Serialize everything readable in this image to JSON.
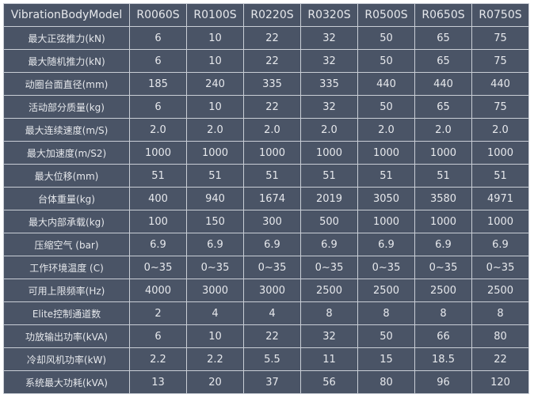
{
  "table": {
    "header": [
      "VibrationBodyModel",
      "R0060S",
      "R0100S",
      "R0220S",
      "R0320S",
      "R0500S",
      "R0650S",
      "R0750S"
    ],
    "rows": [
      [
        "最大正弦推力(kN)",
        "6",
        "10",
        "22",
        "32",
        "50",
        "65",
        "75"
      ],
      [
        "最大随机推力(kN)",
        "6",
        "10",
        "22",
        "32",
        "50",
        "65",
        "75"
      ],
      [
        "动圈台面直径(mm)",
        "185",
        "240",
        "335",
        "335",
        "440",
        "440",
        "440"
      ],
      [
        "活动部分质量(kg)",
        "6",
        "10",
        "22",
        "32",
        "50",
        "65",
        "75"
      ],
      [
        "最大连续速度(m/S)",
        "2.0",
        "2.0",
        "2.0",
        "2.0",
        "2.0",
        "2.0",
        "2.0"
      ],
      [
        "最大加速度(m/S2)",
        "1000",
        "1000",
        "1000",
        "1000",
        "1000",
        "1000",
        "1000"
      ],
      [
        "最大位移(mm)",
        "51",
        "51",
        "51",
        "51",
        "51",
        "51",
        "51"
      ],
      [
        "台体重量(kg)",
        "400",
        "940",
        "1674",
        "2019",
        "3050",
        "3580",
        "4971"
      ],
      [
        "最大内部承载(kg)",
        "100",
        "150",
        "300",
        "500",
        "1000",
        "1000",
        "1000"
      ],
      [
        "压缩空气 (bar)",
        "6.9",
        "6.9",
        "6.9",
        "6.9",
        "6.9",
        "6.9",
        "6.9"
      ],
      [
        "工作环境温度 (C)",
        "0~35",
        "0~35",
        "0~35",
        "0~35",
        "0~35",
        "0~35",
        "0~35"
      ],
      [
        "可用上限频率(Hz)",
        "4000",
        "3000",
        "3000",
        "2500",
        "2500",
        "2500",
        "2500"
      ],
      [
        "Elite控制通道数",
        "2",
        "4",
        "4",
        "8",
        "8",
        "8",
        "8"
      ],
      [
        "功放输出功率(kVA)",
        "6",
        "10",
        "22",
        "32",
        "50",
        "66",
        "80"
      ],
      [
        "冷却风机功率(kW)",
        "2.2",
        "2.2",
        "5.5",
        "11",
        "15",
        "18.5",
        "22"
      ],
      [
        "系统最大功耗(kVA)",
        "13",
        "20",
        "37",
        "56",
        "80",
        "96",
        "120"
      ]
    ]
  }
}
